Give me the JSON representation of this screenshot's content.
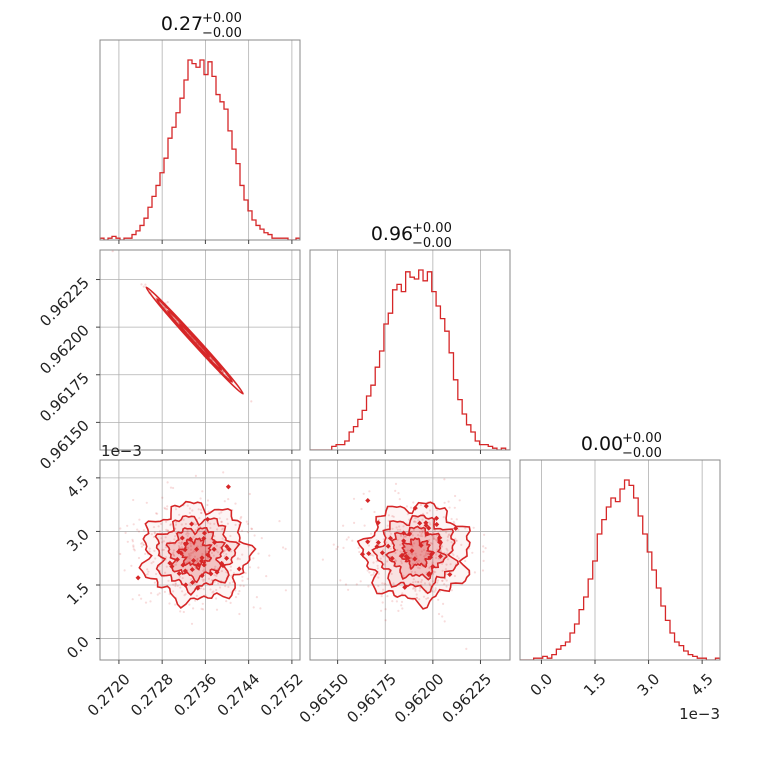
{
  "colors": {
    "main": "#d62728",
    "grid": "#b0b0b0",
    "frame": "#888888"
  },
  "chart_data": {
    "type": "corner",
    "parameters": [
      {
        "title_value": "0.27",
        "title_plus": "+0.00",
        "title_minus": "−0.00",
        "range": [
          0.27165,
          0.27535
        ],
        "ticks": [
          0.272,
          0.2728,
          0.2736,
          0.2744,
          0.2752
        ],
        "tick_labels": [
          "0.2720",
          "0.2728",
          "0.2736",
          "0.2744",
          "0.2752"
        ],
        "hist_peak": 0.2734,
        "hist": [
          1,
          0,
          1,
          2,
          1,
          0,
          1,
          1,
          3,
          5,
          8,
          12,
          18,
          24,
          30,
          37,
          45,
          56,
          62,
          70,
          78,
          88,
          99,
          97,
          95,
          99,
          91,
          98,
          90,
          80,
          76,
          72,
          60,
          50,
          42,
          30,
          22,
          16,
          11,
          8,
          6,
          4,
          3,
          1,
          1,
          1,
          1,
          0,
          0,
          1
        ]
      },
      {
        "title_value": "0.96",
        "title_plus": "+0.00",
        "title_minus": "−0.00",
        "range": [
          0.961355,
          0.962405
        ],
        "ticks": [
          0.9615,
          0.96175,
          0.962,
          0.96225
        ],
        "tick_labels": [
          "0.96150",
          "0.96175",
          "0.96200",
          "0.96225"
        ],
        "hist_peak": 0.96193,
        "hist": [
          0,
          0,
          0,
          0,
          0,
          2,
          3,
          3,
          5,
          10,
          13,
          17,
          22,
          30,
          36,
          46,
          55,
          70,
          76,
          89,
          92,
          88,
          99,
          96,
          95,
          100,
          94,
          99,
          88,
          80,
          73,
          66,
          54,
          39,
          28,
          20,
          14,
          10,
          5,
          3,
          3,
          2,
          1,
          0,
          1,
          0
        ]
      },
      {
        "title_value": "0.00",
        "title_plus": "+0.00",
        "title_minus": "−0.00",
        "range": [
          -0.0006,
          0.005
        ],
        "ticks": [
          0.0,
          0.0015,
          0.003,
          0.0045
        ],
        "tick_labels": [
          "0.0",
          "1.5",
          "3.0",
          "4.5"
        ],
        "offset_label": "1e−3",
        "hist_peak": 0.0025,
        "hist": [
          0,
          0,
          0,
          1,
          1,
          2,
          1,
          3,
          6,
          8,
          10,
          15,
          20,
          28,
          35,
          45,
          55,
          70,
          78,
          85,
          90,
          88,
          95,
          100,
          97,
          90,
          80,
          70,
          60,
          50,
          40,
          30,
          22,
          15,
          10,
          8,
          5,
          3,
          2,
          1,
          1,
          0,
          0,
          1
        ]
      }
    ],
    "left_axis_labels": {
      "row1": [
        "0.96150",
        "0.96175",
        "0.96200",
        "0.96225"
      ],
      "row1_ticks": [
        0.9615,
        0.96175,
        0.962,
        0.96225
      ],
      "row2": [
        "0.0",
        "1.5",
        "3.0",
        "4.5"
      ],
      "row2_ticks": [
        0.0,
        0.0015,
        0.003,
        0.0045
      ],
      "row2_offset": "1e−3"
    },
    "grid": true
  }
}
